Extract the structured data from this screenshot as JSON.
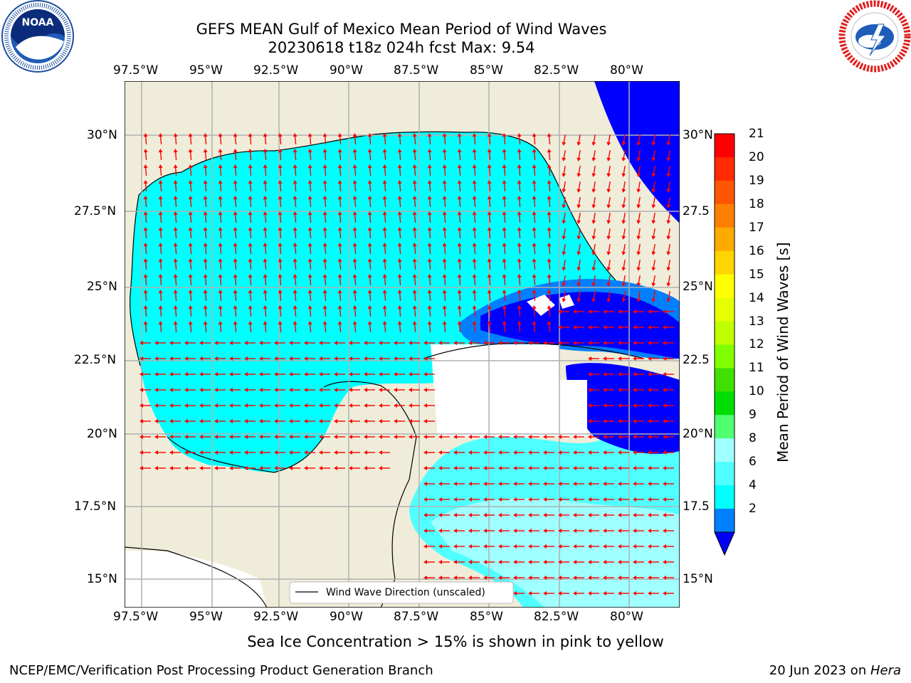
{
  "header": {
    "title_line1": "GEFS MEAN Gulf of Mexico Mean Period of Wind Waves",
    "title_line2": "20230618 t18z 024h fcst   Max: 9.54",
    "left_logo": {
      "name": "NOAA",
      "ring_text": "NATIONAL OCEANIC AND ATMOSPHERIC ADMINISTRATION · U.S. DEPARTMENT OF COMMERCE"
    },
    "right_logo": {
      "ring_text": "NATIONAL WEATHER SERVICE"
    }
  },
  "map": {
    "lon_ticks": [
      "97.5°W",
      "95°W",
      "92.5°W",
      "90°W",
      "87.5°W",
      "85°W",
      "82.5°W",
      "80°W"
    ],
    "lat_ticks": [
      "30°N",
      "27.5°N",
      "25°N",
      "22.5°N",
      "20°N",
      "17.5°N",
      "15°N"
    ],
    "lat_ticks_right": [
      "30°N",
      "27.5",
      "25°N",
      "22.5",
      "20°N",
      "17.5",
      "15°N"
    ],
    "legend_label": "Wind Wave Direction (unscaled)",
    "colors": {
      "land": "#efedd9",
      "ocean_light": "#00ffff",
      "ocean_mid": "#0080ff",
      "ocean_deep": "#0000ff",
      "arrow": "#ff0000",
      "grid": "#b0b0b0"
    }
  },
  "colorbar": {
    "label": "Mean Period of Wind Waves [s]",
    "ticks": [
      "21",
      "20",
      "19",
      "18",
      "17",
      "16",
      "15",
      "14",
      "13",
      "12",
      "11",
      "10",
      "9",
      "8",
      "6",
      "4",
      "2"
    ],
    "colors": [
      "#ff0000",
      "#ff2a00",
      "#ff5500",
      "#ff8000",
      "#ffaa00",
      "#ffd400",
      "#ffff00",
      "#e5ff00",
      "#bfff00",
      "#80ff00",
      "#40e000",
      "#00dd00",
      "#50ff70",
      "#a0ffff",
      "#50ffff",
      "#00ffff",
      "#0080ff"
    ],
    "extend_color": "#0000ff"
  },
  "notes": {
    "sea_ice": "Sea Ice Concentration > 15% is shown in pink to yellow"
  },
  "footer": {
    "left": "NCEP/EMC/Verification Post Processing Product Generation Branch",
    "right_prefix": "20 Jun 2023 on ",
    "right_host": "Hera"
  }
}
